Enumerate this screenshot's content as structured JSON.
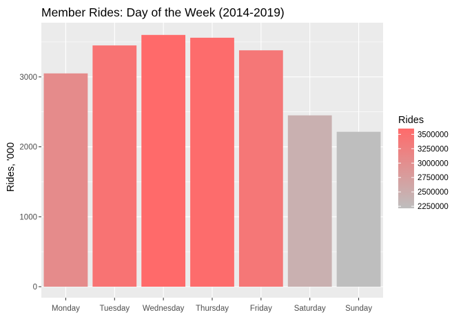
{
  "chart_data": {
    "type": "bar",
    "title": "Member Rides: Day of the Week (2014-2019)",
    "xlabel": "",
    "ylabel": "Rides, '000",
    "categories": [
      "Monday",
      "Tuesday",
      "Wednesday",
      "Thursday",
      "Friday",
      "Saturday",
      "Sunday"
    ],
    "values": [
      3050,
      3450,
      3600,
      3560,
      3380,
      2450,
      2215
    ],
    "ylim": [
      0,
      3800
    ],
    "y_ticks": [
      0,
      1000,
      2000,
      3000
    ],
    "y_tick_labels": [
      "0",
      "1000",
      "2000",
      "3000"
    ],
    "grid": true,
    "legend": {
      "title": "Rides",
      "position": "right",
      "type": "colorbar",
      "range": [
        2215,
        3600
      ],
      "low_color": "#bebebe",
      "high_color": "#ff6a6a",
      "ticks": [
        3500000,
        3250000,
        3000000,
        2750000,
        2500000,
        2250000
      ],
      "tick_labels": [
        "3500000",
        "3250000",
        "3000000",
        "2750000",
        "2500000",
        "2250000"
      ]
    },
    "colors": {
      "panel_background": "#ebebeb",
      "gridline": "#ffffff",
      "bar_low": "#bebebe",
      "bar_high": "#ff6a6a"
    }
  }
}
